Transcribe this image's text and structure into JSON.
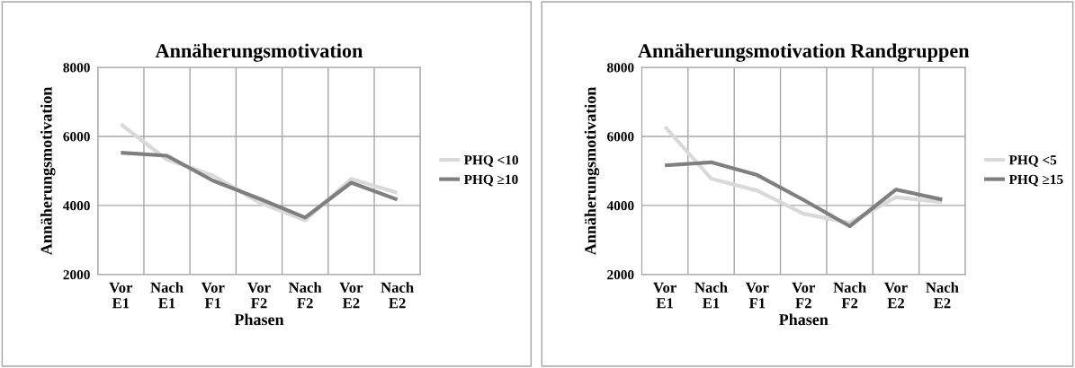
{
  "chart_data": [
    {
      "type": "line",
      "title": "Annäherungsmotivation",
      "xlabel": "Phasen",
      "ylabel": "Annäherungsmotivation",
      "categories": [
        "Vor\nE1",
        "Nach\nE1",
        "Vor\nF1",
        "Vor\nF2",
        "Nach\nF2",
        "Vor\nE2",
        "Nach\nE2"
      ],
      "series": [
        {
          "name": "PHQ <10",
          "color": "#d9d9d9",
          "values": [
            6350,
            5330,
            4870,
            4090,
            3570,
            4770,
            4370
          ]
        },
        {
          "name": "PHQ ≥10",
          "color": "#7f7f7f",
          "values": [
            5530,
            5440,
            4720,
            4200,
            3650,
            4660,
            4170
          ]
        }
      ],
      "ylim": [
        2000,
        8000
      ],
      "yticks": [
        2000,
        4000,
        6000,
        8000
      ],
      "grid": true,
      "legend": "right"
    },
    {
      "type": "line",
      "title": "Annäherungsmotivation Randgruppen",
      "xlabel": "Phasen",
      "ylabel": "Annäherungsmotivation",
      "categories": [
        "Vor\nE1",
        "Nach\nE1",
        "Vor\nF1",
        "Vor\nF2",
        "Nach\nF2",
        "Vor\nE2",
        "Nach\nE2"
      ],
      "series": [
        {
          "name": "PHQ <5",
          "color": "#d9d9d9",
          "values": [
            6280,
            4780,
            4430,
            3760,
            3500,
            4240,
            4090
          ]
        },
        {
          "name": "PHQ ≥15",
          "color": "#7f7f7f",
          "values": [
            5160,
            5250,
            4880,
            4160,
            3400,
            4460,
            4170
          ]
        }
      ],
      "ylim": [
        2000,
        8000
      ],
      "yticks": [
        2000,
        4000,
        6000,
        8000
      ],
      "grid": true,
      "legend": "right"
    }
  ]
}
